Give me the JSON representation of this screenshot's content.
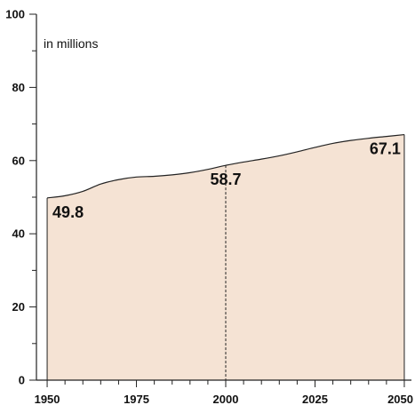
{
  "chart_data": {
    "type": "area",
    "title": "",
    "xlabel": "",
    "ylabel": "",
    "unit_label": "in millions",
    "xlim": [
      1947,
      2052
    ],
    "ylim": [
      0,
      100
    ],
    "x_ticks": [
      1950,
      1975,
      2000,
      2025,
      2050
    ],
    "y_ticks": [
      0,
      20,
      40,
      60,
      80,
      100
    ],
    "grid": false,
    "legend": "none",
    "colors": {
      "fill": "#f5e3d4",
      "line": "#222222"
    },
    "series": [
      {
        "x": [
          1950,
          1955,
          1960,
          1965,
          1970,
          1975,
          1980,
          1985,
          1990,
          1995,
          2000,
          2005,
          2010,
          2015,
          2020,
          2025,
          2030,
          2035,
          2040,
          2045,
          2050
        ],
        "values": [
          49.8,
          50.4,
          51.6,
          53.6,
          54.8,
          55.5,
          55.7,
          56.1,
          56.7,
          57.6,
          58.7,
          59.6,
          60.4,
          61.3,
          62.4,
          63.6,
          64.7,
          65.5,
          66.1,
          66.6,
          67.1
        ]
      }
    ],
    "annotations": [
      {
        "x": 1950,
        "value": 49.8,
        "text": "49.8",
        "position": "below-right"
      },
      {
        "x": 2000,
        "value": 58.7,
        "text": "58.7",
        "position": "below-center",
        "marker_line": "dashed"
      },
      {
        "x": 2050,
        "value": 67.1,
        "text": "67.1",
        "position": "below-left"
      }
    ]
  }
}
